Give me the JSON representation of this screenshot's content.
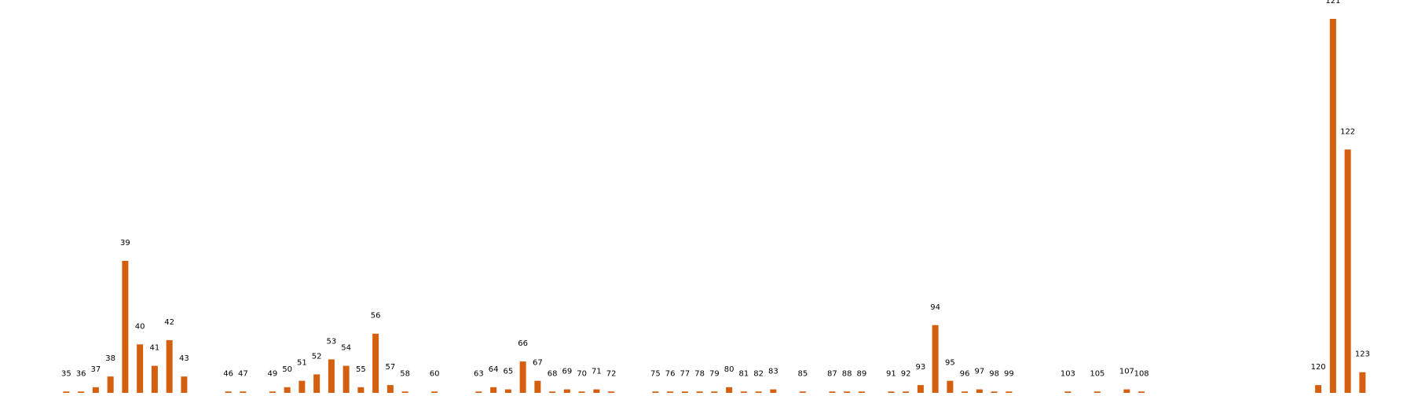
{
  "chart_data": {
    "type": "bar",
    "categories": [
      "35",
      "36",
      "37",
      "38",
      "39",
      "40",
      "41",
      "42",
      "43",
      "46",
      "47",
      "49",
      "50",
      "51",
      "52",
      "53",
      "54",
      "55",
      "56",
      "57",
      "58",
      "60",
      "63",
      "64",
      "65",
      "66",
      "67",
      "68",
      "69",
      "70",
      "71",
      "72",
      "75",
      "76",
      "77",
      "78",
      "79",
      "80",
      "81",
      "82",
      "83",
      "85",
      "87",
      "88",
      "89",
      "91",
      "92",
      "93",
      "94",
      "95",
      "96",
      "97",
      "98",
      "99",
      "103",
      "105",
      "107",
      "108",
      "120",
      "121",
      "122",
      "123"
    ],
    "x": [
      35,
      36,
      37,
      38,
      39,
      40,
      41,
      42,
      43,
      46,
      47,
      49,
      50,
      51,
      52,
      53,
      54,
      55,
      56,
      57,
      58,
      60,
      63,
      64,
      65,
      66,
      67,
      68,
      69,
      70,
      71,
      72,
      75,
      76,
      77,
      78,
      79,
      80,
      81,
      82,
      83,
      85,
      87,
      88,
      89,
      91,
      92,
      93,
      94,
      95,
      96,
      97,
      98,
      99,
      103,
      105,
      107,
      108,
      120,
      121,
      122,
      123
    ],
    "values": [
      1,
      1,
      3,
      8,
      62,
      23,
      13,
      25,
      8,
      1,
      1,
      1,
      3,
      6,
      9,
      16,
      13,
      3,
      28,
      4,
      1,
      1,
      1,
      3,
      2,
      15,
      6,
      1,
      2,
      1,
      2,
      1,
      1,
      1,
      1,
      1,
      1,
      3,
      1,
      1,
      2,
      1,
      1,
      1,
      1,
      1,
      1,
      4,
      32,
      6,
      1,
      2,
      1,
      1,
      1,
      1,
      2,
      1,
      4,
      175,
      114,
      10
    ],
    "xlim": [
      30.5,
      126.5
    ],
    "ylim": [
      0,
      175
    ],
    "grid": false,
    "legend": "none",
    "bar_color": "#d35f0f",
    "label_color": "#000000"
  }
}
